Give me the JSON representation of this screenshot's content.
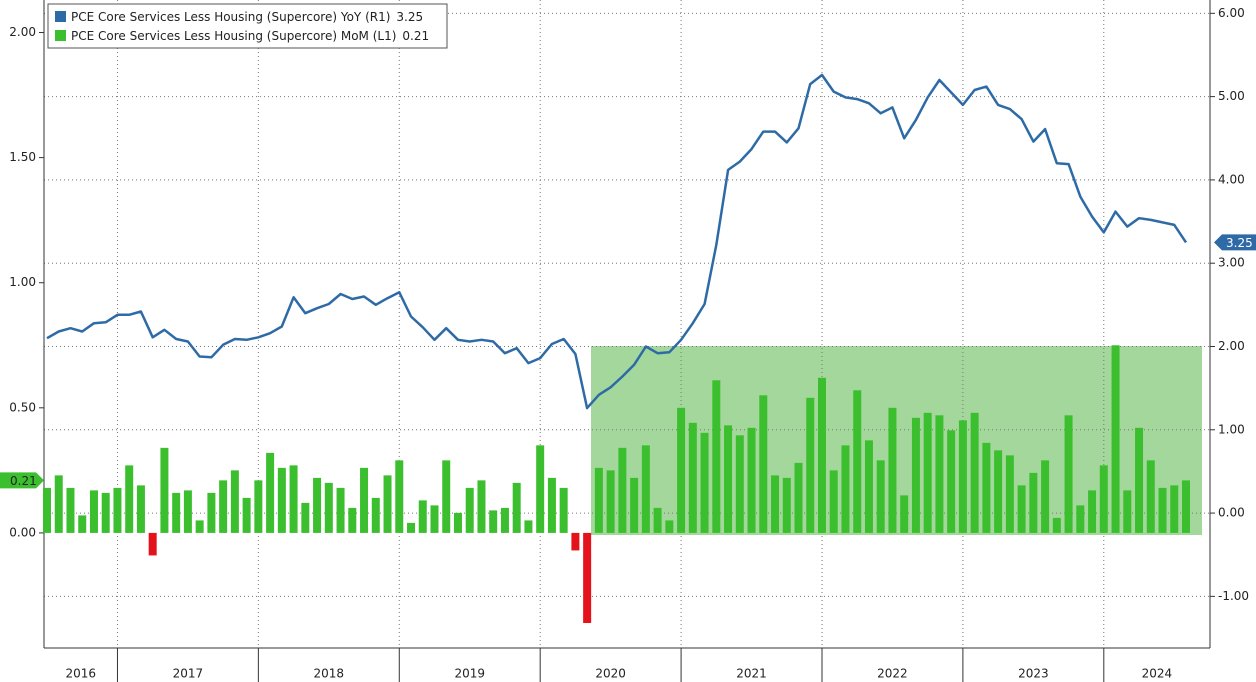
{
  "chart_data": {
    "type": "bar_line",
    "years": [
      "2016",
      "2017",
      "2018",
      "2019",
      "2020",
      "2021",
      "2022",
      "2023",
      "2024"
    ],
    "ylim": [
      -0.46,
      2.13
    ],
    "yticks": [
      {
        "value": 0,
        "label": "0.00"
      },
      {
        "value": 0.5,
        "label": "0.50"
      },
      {
        "value": 1,
        "label": "1.00"
      },
      {
        "value": 1.5,
        "label": "1.50"
      },
      {
        "value": 2,
        "label": "2.00"
      }
    ],
    "y2lim": [
      -1.62,
      6.16
    ],
    "y2ticks": [
      {
        "value": -1,
        "label": "-1.00"
      },
      {
        "value": 0,
        "label": "0.00"
      },
      {
        "value": 1,
        "label": "1.00"
      },
      {
        "value": 2,
        "label": "2.00"
      },
      {
        "value": 3,
        "label": "3.00"
      },
      {
        "value": 4,
        "label": "4.00"
      },
      {
        "value": 5,
        "label": "5.00"
      },
      {
        "value": 6,
        "label": "6.00"
      }
    ],
    "grid": true,
    "legend": "top-left",
    "series": [
      {
        "name": "PCE Core Services Less Housing (Supercore) YoY (R1)",
        "type": "line",
        "axis": "y2",
        "color": "#2e6ba6",
        "values": [
          2.1,
          2.18,
          2.22,
          2.18,
          2.28,
          2.29,
          2.38,
          2.38,
          2.42,
          2.11,
          2.2,
          2.09,
          2.06,
          1.88,
          1.87,
          2.02,
          2.09,
          2.08,
          2.11,
          2.16,
          2.24,
          2.59,
          2.4,
          2.46,
          2.51,
          2.63,
          2.57,
          2.6,
          2.5,
          2.58,
          2.65,
          2.36,
          2.23,
          2.08,
          2.22,
          2.08,
          2.06,
          2.08,
          2.06,
          1.92,
          1.98,
          1.8,
          1.86,
          2.03,
          2.09,
          1.91,
          1.26,
          1.42,
          1.51,
          1.64,
          1.78,
          2.0,
          1.92,
          1.93,
          2.08,
          2.28,
          2.51,
          3.22,
          4.12,
          4.22,
          4.37,
          4.58,
          4.58,
          4.45,
          4.62,
          5.15,
          5.26,
          5.06,
          4.99,
          4.97,
          4.92,
          4.8,
          4.87,
          4.5,
          4.72,
          4.99,
          5.2,
          5.05,
          4.9,
          5.08,
          5.12,
          4.9,
          4.85,
          4.73,
          4.46,
          4.61,
          4.2,
          4.19,
          3.8,
          3.56,
          3.37,
          3.62,
          3.44,
          3.54,
          3.52,
          3.49,
          3.46,
          3.25
        ]
      },
      {
        "name": "PCE Core Services Less Housing (Supercore) MoM (L1)",
        "type": "bar",
        "axis": "y",
        "color": "#3cbf2f",
        "negative_color": "#e3121b",
        "values": [
          0.18,
          0.23,
          0.18,
          0.07,
          0.17,
          0.16,
          0.18,
          0.27,
          0.19,
          -0.09,
          0.34,
          0.16,
          0.17,
          0.05,
          0.16,
          0.21,
          0.25,
          0.14,
          0.21,
          0.32,
          0.26,
          0.27,
          0.12,
          0.22,
          0.2,
          0.18,
          0.1,
          0.26,
          0.14,
          0.23,
          0.29,
          0.04,
          0.13,
          0.11,
          0.29,
          0.08,
          0.18,
          0.21,
          0.09,
          0.1,
          0.2,
          0.05,
          0.35,
          0.22,
          0.18,
          -0.07,
          -0.36,
          0.26,
          0.25,
          0.34,
          0.22,
          0.35,
          0.1,
          0.05,
          0.5,
          0.44,
          0.4,
          0.61,
          0.43,
          0.39,
          0.42,
          0.55,
          0.23,
          0.22,
          0.28,
          0.54,
          0.62,
          0.25,
          0.35,
          0.57,
          0.37,
          0.29,
          0.5,
          0.15,
          0.46,
          0.48,
          0.47,
          0.41,
          0.45,
          0.48,
          0.36,
          0.33,
          0.31,
          0.19,
          0.24,
          0.29,
          0.06,
          0.47,
          0.11,
          0.17,
          0.27,
          0.75,
          0.17,
          0.42,
          0.29,
          0.18,
          0.19,
          0.21
        ]
      }
    ]
  }
}
